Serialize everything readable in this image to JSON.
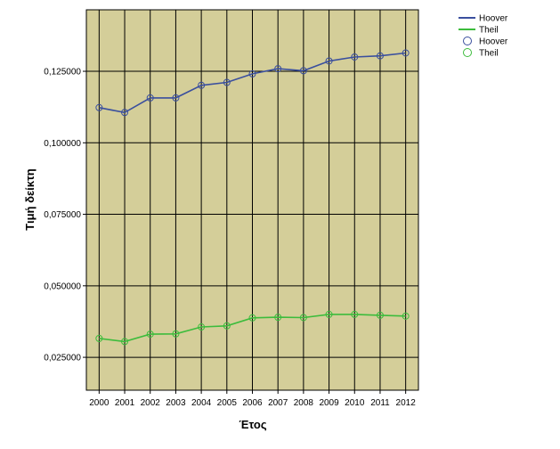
{
  "chart_data": {
    "type": "line",
    "title": "",
    "xlabel": "Έτος",
    "ylabel": "Τιμή δείκτη",
    "x": [
      2000,
      2001,
      2002,
      2003,
      2004,
      2005,
      2006,
      2007,
      2008,
      2009,
      2010,
      2011,
      2012
    ],
    "x_tick_labels": [
      "2000",
      "2001",
      "2002",
      "2003",
      "2004",
      "2005",
      "2006",
      "2007",
      "2008",
      "2009",
      "2010",
      "2011",
      "2012"
    ],
    "ylim": [
      0.0135,
      0.1465
    ],
    "y_ticks": [
      0.025,
      0.05,
      0.075,
      0.1,
      0.125
    ],
    "y_tick_labels": [
      "0,025000",
      "0,050000",
      "0,075000",
      "0,100000",
      "0,125000"
    ],
    "grid": true,
    "legend_position": "top-right",
    "background_color": "#d4ce99",
    "series": [
      {
        "name": "Hoover",
        "color": "#3a4f9e",
        "values": [
          0.1123,
          0.1106,
          0.1157,
          0.1157,
          0.1201,
          0.1211,
          0.1241,
          0.1259,
          0.1252,
          0.1286,
          0.13,
          0.1304,
          0.1314
        ]
      },
      {
        "name": "Theil",
        "color": "#3cbc3c",
        "values": [
          0.0316,
          0.0305,
          0.0331,
          0.0332,
          0.0356,
          0.036,
          0.0388,
          0.039,
          0.0389,
          0.04,
          0.04,
          0.0397,
          0.0394
        ]
      }
    ],
    "legend": [
      {
        "label": "Hoover",
        "kind": "line",
        "color": "#3a4f9e"
      },
      {
        "label": "Theil",
        "kind": "line",
        "color": "#3cbc3c"
      },
      {
        "label": "Hoover",
        "kind": "marker",
        "color": "#3a4f9e"
      },
      {
        "label": "Theil",
        "kind": "marker",
        "color": "#3cbc3c"
      }
    ]
  }
}
